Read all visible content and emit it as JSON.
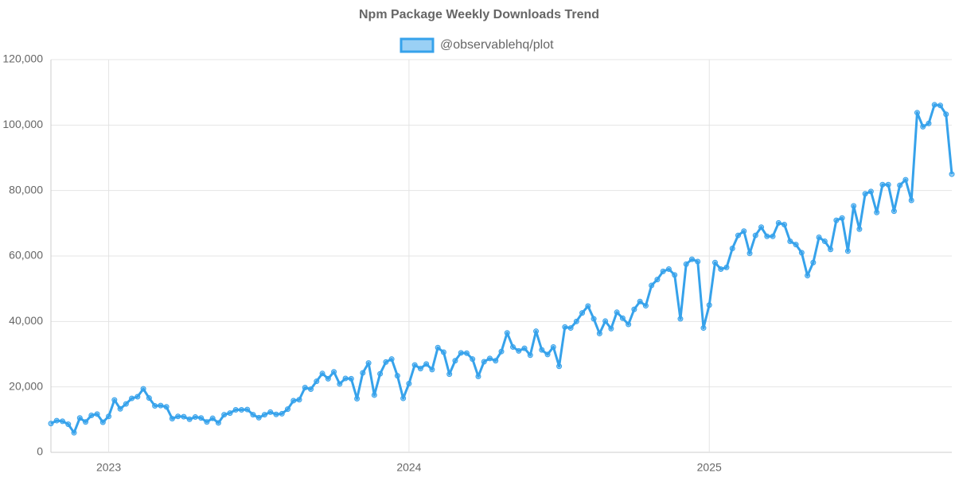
{
  "chart_data": {
    "type": "line",
    "title": "Npm Package Weekly Downloads Trend",
    "categories": [
      null,
      null,
      null,
      null,
      null,
      null,
      null,
      null,
      null,
      null,
      "2023",
      null,
      null,
      null,
      null,
      null,
      null,
      null,
      null,
      null,
      null,
      null,
      null,
      null,
      null,
      null,
      null,
      null,
      null,
      null,
      null,
      null,
      null,
      null,
      null,
      null,
      null,
      null,
      null,
      null,
      null,
      null,
      null,
      null,
      null,
      null,
      null,
      null,
      null,
      null,
      null,
      null,
      null,
      null,
      null,
      null,
      null,
      null,
      null,
      null,
      null,
      null,
      "2024",
      null,
      null,
      null,
      null,
      null,
      null,
      null,
      null,
      null,
      null,
      null,
      null,
      null,
      null,
      null,
      null,
      null,
      null,
      null,
      null,
      null,
      null,
      null,
      null,
      null,
      null,
      null,
      null,
      null,
      null,
      null,
      null,
      null,
      null,
      null,
      null,
      null,
      null,
      null,
      null,
      null,
      null,
      null,
      null,
      null,
      null,
      null,
      null,
      null,
      null,
      null,
      "2025",
      null,
      null,
      null,
      null,
      null,
      null,
      null,
      null,
      null,
      null,
      null,
      null,
      null,
      null,
      null,
      null,
      null,
      null,
      null,
      null,
      null,
      null,
      null,
      null,
      null,
      null,
      null,
      null,
      null,
      null,
      null,
      null,
      null,
      null,
      null,
      null,
      null,
      null,
      null,
      null,
      null,
      null
    ],
    "series": [
      {
        "name": "@observablehq/plot",
        "color": "#36a2eb",
        "values": [
          8800,
          9700,
          9500,
          8600,
          6000,
          10500,
          9300,
          11300,
          11700,
          9200,
          11000,
          16000,
          13300,
          14800,
          16500,
          17000,
          19400,
          16600,
          14200,
          14300,
          13900,
          10300,
          11000,
          10900,
          10100,
          10800,
          10500,
          9300,
          10400,
          9000,
          11500,
          12000,
          13000,
          13000,
          13100,
          11500,
          10600,
          11500,
          12300,
          11600,
          11800,
          13200,
          15800,
          16100,
          19800,
          19300,
          21700,
          24100,
          22500,
          24600,
          20900,
          22600,
          22500,
          16400,
          24300,
          27300,
          17500,
          24000,
          27600,
          28500,
          23400,
          16500,
          21000,
          26700,
          25600,
          27000,
          25300,
          32000,
          30600,
          23900,
          28000,
          30400,
          30300,
          28500,
          23200,
          27700,
          28700,
          28000,
          30800,
          36500,
          32200,
          31000,
          31800,
          29700,
          37000,
          31300,
          29900,
          32200,
          26300,
          38300,
          38000,
          40000,
          42600,
          44700,
          40800,
          36300,
          40100,
          37800,
          42800,
          41000,
          39100,
          43700,
          46100,
          44800,
          51000,
          52800,
          55300,
          56000,
          54200,
          40800,
          57500,
          59000,
          58300,
          38000,
          45000,
          58000,
          56000,
          56500,
          62300,
          66300,
          67600,
          60800,
          66300,
          68800,
          66000,
          66000,
          70100,
          69600,
          64500,
          63500,
          61000,
          54000,
          58000,
          65700,
          64500,
          62000,
          70900,
          71600,
          61500,
          75300,
          68200,
          79000,
          79700,
          73300,
          81800,
          81800,
          73700,
          81600,
          83300,
          77000,
          103800,
          99500,
          100500,
          106200,
          106000,
          103300,
          85000
        ]
      }
    ],
    "ylim": [
      0,
      120000
    ],
    "yticks": [
      0,
      {
        "value": 20000,
        "label": "20,000"
      },
      {
        "value": 40000,
        "label": "40,000"
      },
      {
        "value": 60000,
        "label": "60,000"
      },
      {
        "value": 80000,
        "label": "80,000"
      },
      {
        "value": 100000,
        "label": "100,000"
      },
      {
        "value": 120000,
        "label": "120,000"
      }
    ],
    "grid": true,
    "legend": "top"
  }
}
